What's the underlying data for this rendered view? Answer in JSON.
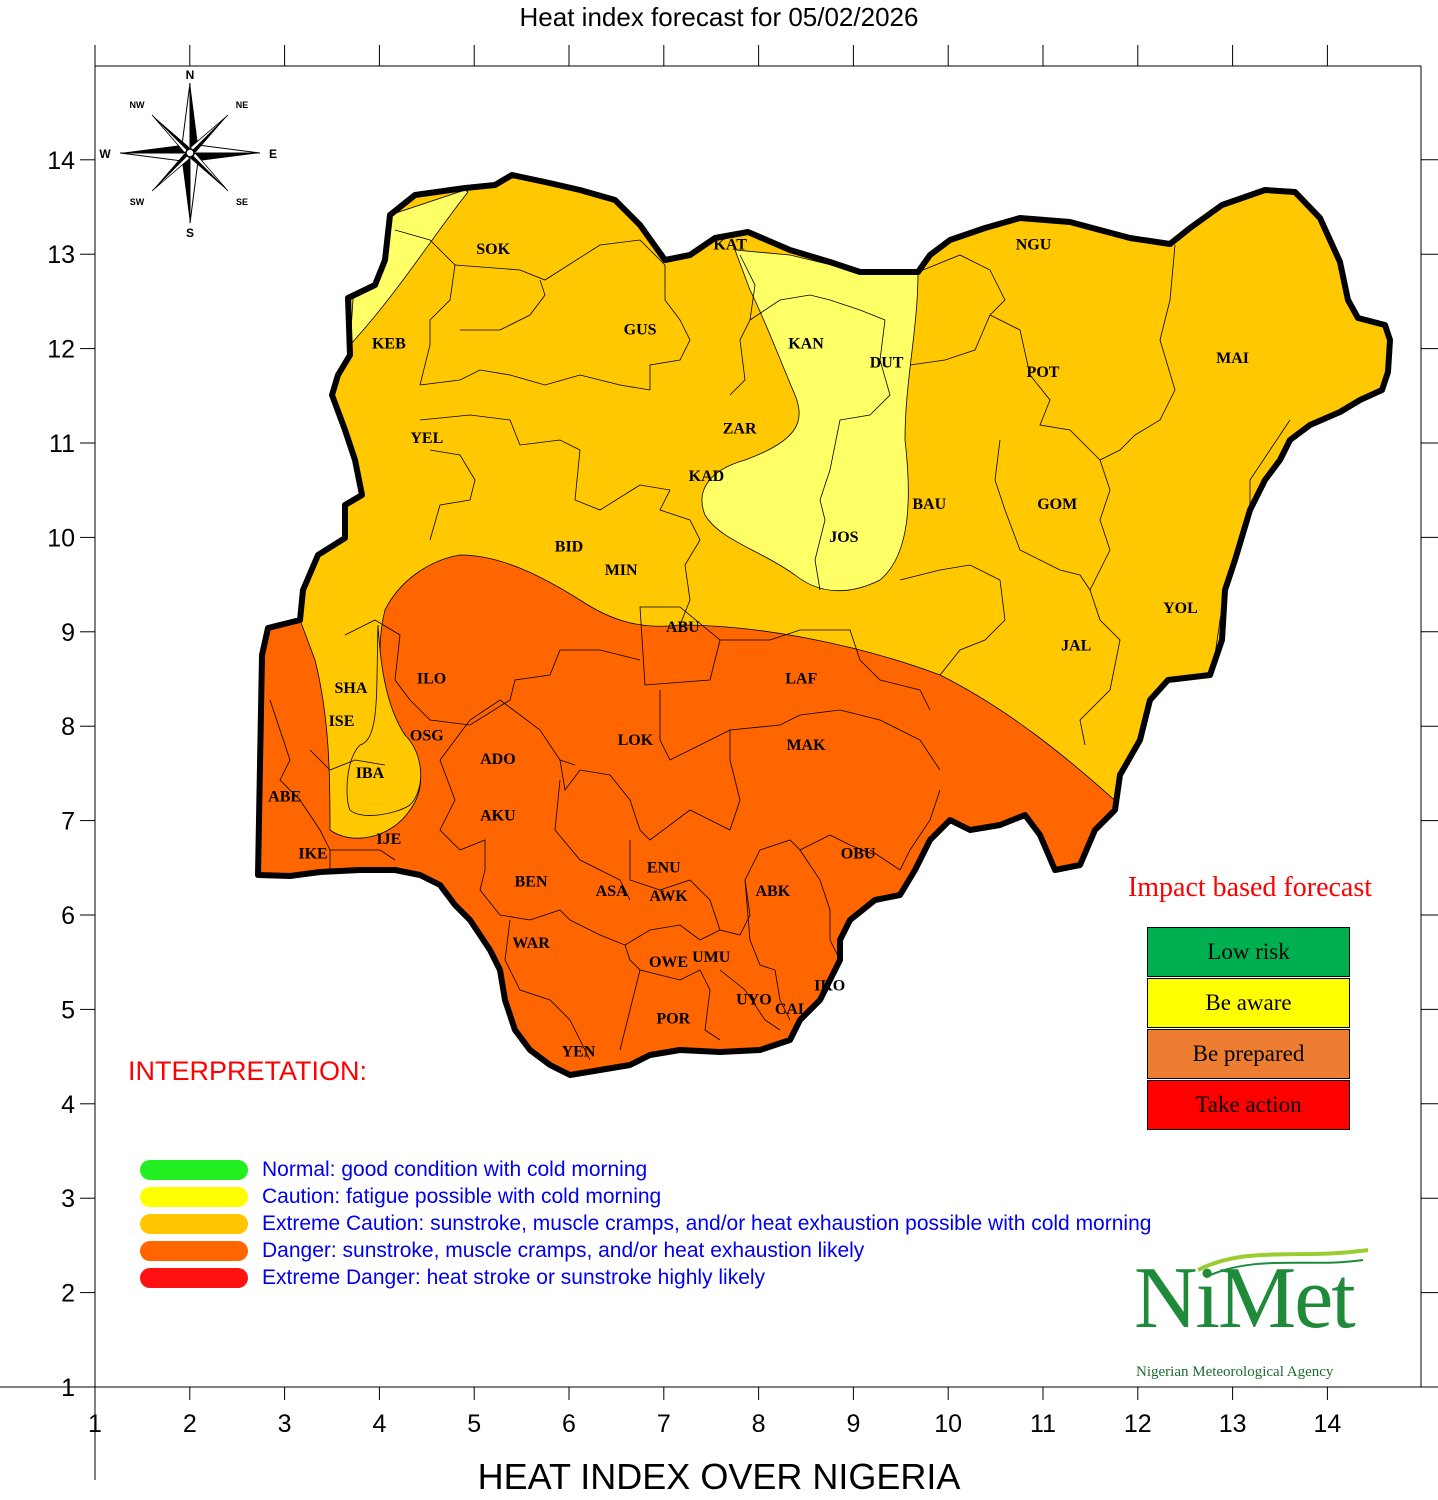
{
  "title": "Heat index forecast for 05/02/2026",
  "axis_label": "HEAT INDEX OVER NIGERIA",
  "x_ticks": [
    "1",
    "2",
    "3",
    "4",
    "5",
    "6",
    "7",
    "8",
    "9",
    "10",
    "11",
    "12",
    "13",
    "14"
  ],
  "y_ticks": [
    "14",
    "13",
    "12",
    "11",
    "10",
    "9",
    "8",
    "7",
    "6",
    "5",
    "4",
    "3",
    "2",
    "1"
  ],
  "compass": {
    "N": "N",
    "S": "S",
    "E": "E",
    "W": "W",
    "NE": "NE",
    "NW": "NW",
    "SE": "SE",
    "SW": "SW"
  },
  "states": [
    {
      "label": "SOK",
      "lon": 5.2,
      "lat": 13.0
    },
    {
      "label": "KAT",
      "lon": 7.7,
      "lat": 13.05
    },
    {
      "label": "NGU",
      "lon": 10.9,
      "lat": 13.05
    },
    {
      "label": "KEB",
      "lon": 4.1,
      "lat": 12.0
    },
    {
      "label": "GUS",
      "lon": 6.75,
      "lat": 12.15
    },
    {
      "label": "KAN",
      "lon": 8.5,
      "lat": 12.0
    },
    {
      "label": "DUT",
      "lon": 9.35,
      "lat": 11.8
    },
    {
      "label": "POT",
      "lon": 11.0,
      "lat": 11.7
    },
    {
      "label": "MAI",
      "lon": 13.0,
      "lat": 11.85
    },
    {
      "label": "YEL",
      "lon": 4.5,
      "lat": 11.0
    },
    {
      "label": "ZAR",
      "lon": 7.8,
      "lat": 11.1
    },
    {
      "label": "KAD",
      "lon": 7.45,
      "lat": 10.6
    },
    {
      "label": "BAU",
      "lon": 9.8,
      "lat": 10.3
    },
    {
      "label": "GOM",
      "lon": 11.15,
      "lat": 10.3
    },
    {
      "label": "JOS",
      "lon": 8.9,
      "lat": 9.95
    },
    {
      "label": "BID",
      "lon": 6.0,
      "lat": 9.85
    },
    {
      "label": "MIN",
      "lon": 6.55,
      "lat": 9.6
    },
    {
      "label": "YOL",
      "lon": 12.45,
      "lat": 9.2
    },
    {
      "label": "ABU",
      "lon": 7.2,
      "lat": 9.0
    },
    {
      "label": "JAL",
      "lon": 11.35,
      "lat": 8.8
    },
    {
      "label": "SHA",
      "lon": 3.7,
      "lat": 8.35
    },
    {
      "label": "ILO",
      "lon": 4.55,
      "lat": 8.45
    },
    {
      "label": "LAF",
      "lon": 8.45,
      "lat": 8.45
    },
    {
      "label": "ISE",
      "lon": 3.6,
      "lat": 8.0
    },
    {
      "label": "OSG",
      "lon": 4.5,
      "lat": 7.85
    },
    {
      "label": "LOK",
      "lon": 6.7,
      "lat": 7.8
    },
    {
      "label": "MAK",
      "lon": 8.5,
      "lat": 7.75
    },
    {
      "label": "ADO",
      "lon": 5.25,
      "lat": 7.6
    },
    {
      "label": "IBA",
      "lon": 3.9,
      "lat": 7.45
    },
    {
      "label": "ABE",
      "lon": 3.0,
      "lat": 7.2
    },
    {
      "label": "AKU",
      "lon": 5.25,
      "lat": 7.0
    },
    {
      "label": "IJE",
      "lon": 4.1,
      "lat": 6.75
    },
    {
      "label": "IKE",
      "lon": 3.3,
      "lat": 6.6
    },
    {
      "label": "ENU",
      "lon": 7.0,
      "lat": 6.45
    },
    {
      "label": "OBU",
      "lon": 9.05,
      "lat": 6.6
    },
    {
      "label": "BEN",
      "lon": 5.6,
      "lat": 6.3
    },
    {
      "label": "ASA",
      "lon": 6.45,
      "lat": 6.2
    },
    {
      "label": "AWK",
      "lon": 7.05,
      "lat": 6.15
    },
    {
      "label": "ABK",
      "lon": 8.15,
      "lat": 6.2
    },
    {
      "label": "WAR",
      "lon": 5.6,
      "lat": 5.65
    },
    {
      "label": "OWE",
      "lon": 7.05,
      "lat": 5.45
    },
    {
      "label": "UMU",
      "lon": 7.5,
      "lat": 5.5
    },
    {
      "label": "IKO",
      "lon": 8.75,
      "lat": 5.2
    },
    {
      "label": "UYO",
      "lon": 7.95,
      "lat": 5.05
    },
    {
      "label": "CAL",
      "lon": 8.35,
      "lat": 4.95
    },
    {
      "label": "POR",
      "lon": 7.1,
      "lat": 4.85
    },
    {
      "label": "YEN",
      "lon": 6.1,
      "lat": 4.5
    }
  ],
  "interpretation": {
    "title": "INTERPRETATION:",
    "items": [
      {
        "color": "#22ee22",
        "text": "Normal: good condition with cold morning"
      },
      {
        "color": "#ffff00",
        "text": "Caution: fatigue possible  with cold morning"
      },
      {
        "color": "#ffc600",
        "text": "Extreme Caution: sunstroke, muscle cramps, and/or heat exhaustion possible  with cold morning"
      },
      {
        "color": "#ff6600",
        "text": "Danger: sunstroke, muscle cramps, and/or heat exhaustion likely"
      },
      {
        "color": "#ff1111",
        "text": "Extreme Danger: heat stroke or sunstroke highly likely"
      }
    ]
  },
  "impact_forecast": {
    "title": "Impact based forecast",
    "levels": [
      {
        "label": "Low risk",
        "color": "#00b050"
      },
      {
        "label": "Be aware",
        "color": "#ffff00"
      },
      {
        "label": "Be prepared",
        "color": "#ed7d31"
      },
      {
        "label": "Take action",
        "color": "#ff0000"
      }
    ]
  },
  "logo": {
    "name": "NiMet",
    "subtitle": "Nigerian Meteorological Agency"
  },
  "colors": {
    "caution": "#ffff66",
    "extreme_caution": "#ffc800",
    "danger": "#ff6600"
  }
}
